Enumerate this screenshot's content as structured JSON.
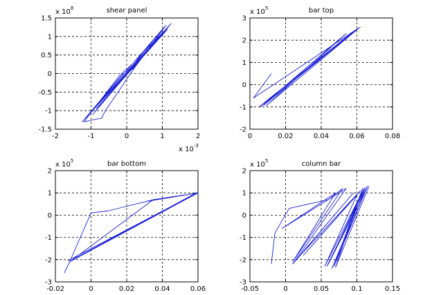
{
  "chart_data": [
    {
      "type": "line",
      "title": "shear panel",
      "xlim": [
        -2,
        2
      ],
      "ylim": [
        -1.5,
        1.5
      ],
      "xticks": [
        -2,
        -1,
        0,
        1,
        2
      ],
      "xtick_labels": [
        "-2",
        "-1",
        "0",
        "1",
        "2"
      ],
      "yticks": [
        -1.5,
        -1,
        -0.5,
        0,
        0.5,
        1,
        1.5
      ],
      "ytick_labels": [
        "-1.5",
        "-1",
        "-0.5",
        "0",
        "0.5",
        "1",
        "1.5"
      ],
      "x_multiplier": {
        "base": "x 10",
        "exp": "-3"
      },
      "y_multiplier": {
        "base": "x 10",
        "exp": "8"
      },
      "grid": true,
      "color": "#1a1fd6",
      "series": [
        {
          "x": [
            0,
            0.2,
            1.1,
            0.25,
            -0.6,
            -0.7,
            -1.2,
            -0.2,
            0.15,
            1.2,
            -1.25,
            1.25,
            -1.15,
            1.05,
            -0.95,
            1.0,
            -0.85,
            1.15,
            0.05,
            -0.15,
            -1.2,
            0.3,
            1.25
          ],
          "y": [
            0,
            0.15,
            1.3,
            0.2,
            -1.0,
            -1.2,
            -1.3,
            -0.05,
            0.25,
            1.3,
            -1.3,
            1.35,
            -1.2,
            1.25,
            -1.1,
            1.1,
            -0.95,
            1.2,
            0.1,
            -0.05,
            -1.25,
            0.3,
            1.35
          ]
        }
      ]
    },
    {
      "type": "line",
      "title": "bar top",
      "xlim": [
        0,
        0.08
      ],
      "ylim": [
        -2,
        3
      ],
      "xticks": [
        0,
        0.02,
        0.04,
        0.06,
        0.08
      ],
      "xtick_labels": [
        "0",
        "0.02",
        "0.04",
        "0.06",
        "0.08"
      ],
      "yticks": [
        -2,
        -1,
        0,
        1,
        2,
        3
      ],
      "ytick_labels": [
        "-2",
        "-1",
        "0",
        "1",
        "2",
        "3"
      ],
      "y_multiplier": {
        "base": "x 10",
        "exp": "5"
      },
      "grid": true,
      "color": "#1a1fd6",
      "series": [
        {
          "x": [
            0.012,
            0.002,
            0.06,
            0.005,
            0.055,
            0.008,
            0.061,
            0.006,
            0.054,
            0.009,
            0.062
          ],
          "y": [
            0.5,
            -0.6,
            2.5,
            -1.0,
            2.2,
            -0.9,
            2.55,
            -1.0,
            2.3,
            -0.95,
            2.6
          ]
        }
      ]
    },
    {
      "type": "line",
      "title": "bar bottom",
      "xlim": [
        -0.02,
        0.06
      ],
      "ylim": [
        -3,
        2
      ],
      "xticks": [
        -0.02,
        0,
        0.02,
        0.04,
        0.06
      ],
      "xtick_labels": [
        "-0.02",
        "0",
        "0.02",
        "0.04",
        "0.06"
      ],
      "yticks": [
        -3,
        -2,
        -1,
        0,
        1,
        2
      ],
      "ytick_labels": [
        "-3",
        "-2",
        "-1",
        "0",
        "1",
        "2"
      ],
      "y_multiplier": {
        "base": "x 10",
        "exp": "5"
      },
      "grid": true,
      "color": "#1a1fd6",
      "series": [
        {
          "x": [
            -0.015,
            -0.012,
            0.0,
            0.01,
            0.035,
            0.06,
            -0.012,
            0.035,
            0.06,
            -0.01,
            0.058,
            -0.008,
            0.059,
            -0.012,
            0.06,
            0.03,
            0.06,
            -0.013,
            0.059
          ],
          "y": [
            -2.6,
            -2.1,
            0.1,
            0.2,
            0.7,
            1.0,
            -2.1,
            0.7,
            1.0,
            -2.0,
            0.95,
            -1.9,
            1.0,
            -2.1,
            1.0,
            0.6,
            1.0,
            -2.05,
            0.98
          ]
        }
      ]
    },
    {
      "type": "line",
      "title": "column bar",
      "xlim": [
        -0.05,
        0.15
      ],
      "ylim": [
        -3,
        2
      ],
      "xticks": [
        -0.05,
        0,
        0.05,
        0.1,
        0.15
      ],
      "xtick_labels": [
        "-0.05",
        "0",
        "0.05",
        "0.1",
        "0.15"
      ],
      "yticks": [
        -3,
        -2,
        -1,
        0,
        1,
        2
      ],
      "ytick_labels": [
        "-3",
        "-2",
        "-1",
        "0",
        "1",
        "2"
      ],
      "y_multiplier": {
        "base": "x 10",
        "exp": "5"
      },
      "grid": true,
      "color": "#1a1fd6",
      "series": [
        {
          "x": [
            -0.02,
            -0.015,
            0.005,
            0.06,
            0.08,
            0.01,
            0.07,
            -0.005,
            0.085,
            0.01,
            0.095,
            0.015,
            0.105,
            0.025,
            0.1,
            0.055,
            0.11,
            0.06,
            0.115,
            0.058,
            0.112,
            0.065,
            0.115,
            0.068,
            0.108,
            0.07,
            0.117
          ],
          "y": [
            -2.2,
            -0.8,
            0.3,
            0.7,
            1.2,
            -2.1,
            1.0,
            -0.6,
            1.2,
            -2.2,
            1.0,
            -2.0,
            1.1,
            -1.8,
            0.9,
            -2.3,
            1.2,
            -2.2,
            1.3,
            -2.3,
            1.25,
            -2.4,
            1.3,
            -2.3,
            1.2,
            -2.35,
            1.3
          ]
        }
      ]
    }
  ]
}
